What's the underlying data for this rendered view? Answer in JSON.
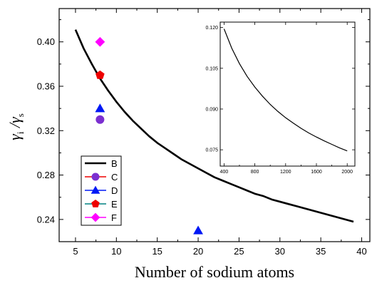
{
  "chart_data": {
    "main": {
      "type": "line",
      "xlabel": "Number of sodium atoms",
      "ylabel": {
        "main1": "γ",
        "sub1": "i",
        "slash": " /",
        "main2": "γ",
        "sub2": "s"
      },
      "xlim": [
        3,
        41
      ],
      "ylim": [
        0.22,
        0.43
      ],
      "x_ticks": [
        5,
        10,
        15,
        20,
        25,
        30,
        35,
        40
      ],
      "y_ticks": [
        0.24,
        0.28,
        0.32,
        0.36,
        0.4
      ],
      "x_tick_labels": [
        "5",
        "10",
        "15",
        "20",
        "25",
        "30",
        "35",
        "40"
      ],
      "y_tick_labels": [
        "0.24",
        "0.28",
        "0.32",
        "0.36",
        "0.40"
      ],
      "grid": false,
      "legend_position": "lower-left",
      "series": [
        {
          "name": "B",
          "kind": "line",
          "color": "#000000",
          "x": [
            5,
            6,
            7,
            8,
            9,
            10,
            11,
            12,
            13,
            14,
            15,
            16,
            17,
            18,
            19,
            20,
            21,
            22,
            23,
            24,
            25,
            26,
            27,
            28,
            29,
            30,
            31,
            32,
            33,
            34,
            35,
            36,
            37,
            38,
            39
          ],
          "y": [
            0.411,
            0.394,
            0.38,
            0.367,
            0.356,
            0.346,
            0.337,
            0.329,
            0.322,
            0.315,
            0.309,
            0.304,
            0.299,
            0.294,
            0.29,
            0.286,
            0.282,
            0.278,
            0.275,
            0.272,
            0.269,
            0.266,
            0.263,
            0.261,
            0.258,
            0.256,
            0.254,
            0.252,
            0.25,
            0.248,
            0.246,
            0.244,
            0.242,
            0.24,
            0.238
          ]
        },
        {
          "name": "C",
          "kind": "marker",
          "marker": "circle",
          "color": "#7b2fd0",
          "x": [
            8
          ],
          "y": [
            0.33
          ]
        },
        {
          "name": "D",
          "kind": "marker",
          "marker": "triangle",
          "color": "#0018f5",
          "x": [
            8,
            20
          ],
          "y": [
            0.34,
            0.23
          ]
        },
        {
          "name": "E",
          "kind": "marker",
          "marker": "pentagon",
          "color": "#ee0000",
          "x": [
            8
          ],
          "y": [
            0.37
          ]
        },
        {
          "name": "F",
          "kind": "marker",
          "marker": "diamond",
          "color": "#ff00ff",
          "x": [
            8
          ],
          "y": [
            0.4
          ]
        }
      ]
    },
    "inset": {
      "type": "line",
      "xlim": [
        350,
        2100
      ],
      "ylim": [
        0.069,
        0.122
      ],
      "x_ticks": [
        400,
        800,
        1200,
        1600,
        2000
      ],
      "y_ticks": [
        0.075,
        0.09,
        0.105,
        0.12
      ],
      "x_tick_labels": [
        "400",
        "800",
        "1200",
        "1600",
        "2000"
      ],
      "y_tick_labels": [
        "0.075",
        "0.090",
        "0.105",
        "0.120"
      ],
      "series": [
        {
          "kind": "line",
          "color": "#000000",
          "x": [
            400,
            500,
            600,
            700,
            800,
            900,
            1000,
            1100,
            1200,
            1300,
            1400,
            1500,
            1600,
            1700,
            1800,
            1900,
            2000
          ],
          "y": [
            0.1195,
            0.1124,
            0.1067,
            0.102,
            0.0981,
            0.0947,
            0.0917,
            0.0891,
            0.0868,
            0.0848,
            0.0829,
            0.0812,
            0.0797,
            0.0783,
            0.077,
            0.0757,
            0.0746
          ]
        }
      ]
    },
    "legend": [
      {
        "label": "B",
        "marker": "none",
        "color": "#000000"
      },
      {
        "label": "C",
        "marker": "circle",
        "color": "#7b2fd0",
        "line_color": "#ee0000"
      },
      {
        "label": "D",
        "marker": "triangle",
        "color": "#0018f5",
        "line_color": "#0018f5"
      },
      {
        "label": "E",
        "marker": "pentagon",
        "color": "#ee0000",
        "line_color": "#008080"
      },
      {
        "label": "F",
        "marker": "diamond",
        "color": "#ff00ff",
        "line_color": "#ff00ff"
      }
    ]
  }
}
